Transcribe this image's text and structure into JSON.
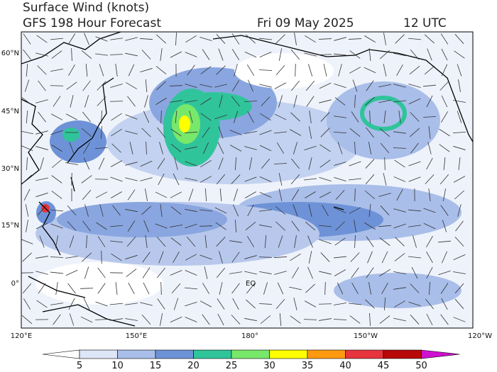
{
  "header": {
    "title": "Surface Wind (knots)",
    "subtitle": "GFS 198 Hour Forecast",
    "date": "Fri 09 May 2025",
    "time": "12 UTC"
  },
  "map": {
    "lat_labels": [
      "60°N",
      "45°N",
      "30°N",
      "15°N",
      "0°"
    ],
    "lon_labels": [
      "120°E",
      "150°E",
      "180°",
      "150°W",
      "120°W"
    ],
    "annotations": [
      "EQ"
    ]
  },
  "colorbar": {
    "labels": [
      "5",
      "10",
      "15",
      "20",
      "25",
      "30",
      "35",
      "40",
      "45",
      "50"
    ],
    "colors": [
      "#ffffff",
      "#dde6f6",
      "#a9bee9",
      "#6e92d7",
      "#30c49a",
      "#78e86a",
      "#ffff00",
      "#ff9a10",
      "#e8343c",
      "#b80808",
      "#d010d0"
    ]
  }
}
